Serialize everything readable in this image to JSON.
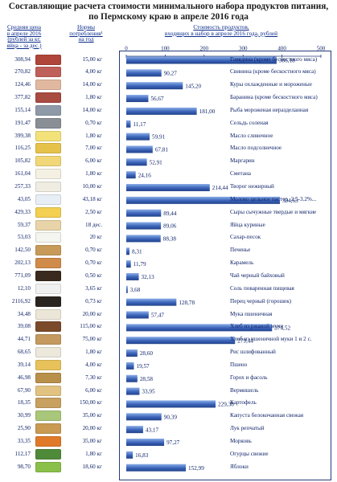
{
  "title_line1": "Составляющие расчета стоимости минимального набора продуктов питания,",
  "title_line2": "по Пермскому краю в апреле 2016 года",
  "headers": {
    "price": [
      "Средняя цена",
      "в апреле 2016",
      "(рублей за кг,",
      "яйца - за дес.)"
    ],
    "norm": [
      "Нормы",
      "потребления¹",
      "на год"
    ],
    "cost": [
      "Стоимость продуктов,",
      "входящих в набор в апреле 2016 года, рублей"
    ]
  },
  "colors": {
    "bar": "#3a62b8",
    "bar_light": "#8aaee8",
    "text": "#0a1f66",
    "border": "#243b7a"
  },
  "chart_data": {
    "type": "bar",
    "orientation": "horizontal",
    "xlim": [
      0,
      500
    ],
    "xticks": [
      "0",
      "100",
      "200",
      "300",
      "400",
      "500"
    ],
    "grid": false,
    "categories": [
      "Говядина (кроме бескостного мяса)",
      "Свинина (кроме бескостного мяса)",
      "Куры охлажденные и мороженые",
      "Баранина (кроме бескостного мяса)",
      "Рыба мороженая неразделанная",
      "Сельдь соленая",
      "Масло сливочное",
      "Масло подсолнечное",
      "Маргарин",
      "Сметана",
      "Творог нежирный",
      "Молоко цельное пастер. 2.5-3.2%...",
      "Сыры сычужные твердые и мягкие",
      "Яйца куриные",
      "Сахар-песок",
      "Печенье",
      "Карамель",
      "Чай черный байховый",
      "Соль поваренная пищевая",
      "Перец черный (горошек)",
      "Мука пшеничная",
      "Хлеб из ржаной муки",
      "Хлеб из пшеничной муки 1 и 2 с.",
      "Рис шлифованный",
      "Пшено",
      "Горох и фасоль",
      "Вермишель",
      "Картофель",
      "Капуста белокочанная свежая",
      "Лук репчатый",
      "Морковь",
      "Огурцы свежие",
      "Яблоки"
    ],
    "values": [
      386.18,
      90.27,
      145.2,
      56.67,
      181.0,
      11.17,
      59.91,
      67.81,
      52.91,
      24.16,
      214.44,
      394.63,
      89.44,
      89.06,
      88.38,
      8.31,
      11.79,
      32.13,
      3.68,
      128.78,
      57.47,
      374.52,
      279.44,
      28.6,
      19.57,
      28.58,
      33.95,
      229.38,
      90.39,
      43.17,
      97.27,
      16.83,
      152.99
    ],
    "value_labels": [
      "386,18",
      "90,27",
      "145,20",
      "56,67",
      "181,00",
      "11,17",
      "59,91",
      "67,81",
      "52,91",
      "24,16",
      "214,44",
      "394,63",
      "89,44",
      "89,06",
      "88,38",
      "8,31",
      "11,79",
      "32,13",
      "3,68",
      "128,78",
      "57,47",
      "374,52",
      "279,44",
      "28,60",
      "19,57",
      "28,58",
      "33,95",
      "229,38",
      "90,39",
      "43,17",
      "97,27",
      "16,83",
      "152,99"
    ],
    "prices": [
      "308,94",
      "270,82",
      "124,46",
      "377,82",
      "155,14",
      "191,47",
      "399,38",
      "116,25",
      "105,82",
      "161,04",
      "257,33",
      "43,05",
      "429,33",
      "59,37",
      "53,03",
      "142,50",
      "202,13",
      "771,09",
      "12,10",
      "2116,92",
      "34,48",
      "39,08",
      "44,71",
      "68,65",
      "39,14",
      "46,98",
      "67,90",
      "18,35",
      "30,99",
      "25,90",
      "33,35",
      "112,17",
      "98,70"
    ],
    "norms": [
      "15,00 кг",
      "4,00 кг",
      "14,00 кг",
      "1,80 кг",
      "14,00 кг",
      "0,70 кг",
      "1,80 кг",
      "7,00 кг",
      "6,00 кг",
      "1,80 кг",
      "10,00 кг",
      "43,18 кг",
      "2,50 кг",
      "18 дес.",
      "20 кг",
      "0,70 кг",
      "0,70 кг",
      "0,50 кг",
      "3,65 кг",
      "0,73 кг",
      "20,00 кг",
      "115,00 кг",
      "75,00 кг",
      "1,80 кг",
      "4,00 кг",
      "7,30 кг",
      "6,00 кг",
      "150,00 кг",
      "35,00 кг",
      "20,00 кг",
      "35,00 кг",
      "1,80 кг",
      "18,60 кг"
    ],
    "thumb_colors": [
      "#b0453a",
      "#c0605a",
      "#e0b8a0",
      "#a84b40",
      "#8f9aa8",
      "#8a8f96",
      "#f3e27a",
      "#e6c24a",
      "#f1d778",
      "#f4f0e2",
      "#efece2",
      "#e8eef6",
      "#f3cf52",
      "#e8d4a8",
      "#f4f4f0",
      "#c79a5a",
      "#d08a4a",
      "#3a2a1e",
      "#f0f0f0",
      "#2a2420",
      "#ece6d8",
      "#7a4a2a",
      "#c49a60",
      "#ece8dc",
      "#e7c25a",
      "#b8904a",
      "#e2c280",
      "#c8a060",
      "#a9c77a",
      "#c89a52",
      "#e07a28",
      "#4f8a3a",
      "#8ac04a"
    ]
  }
}
